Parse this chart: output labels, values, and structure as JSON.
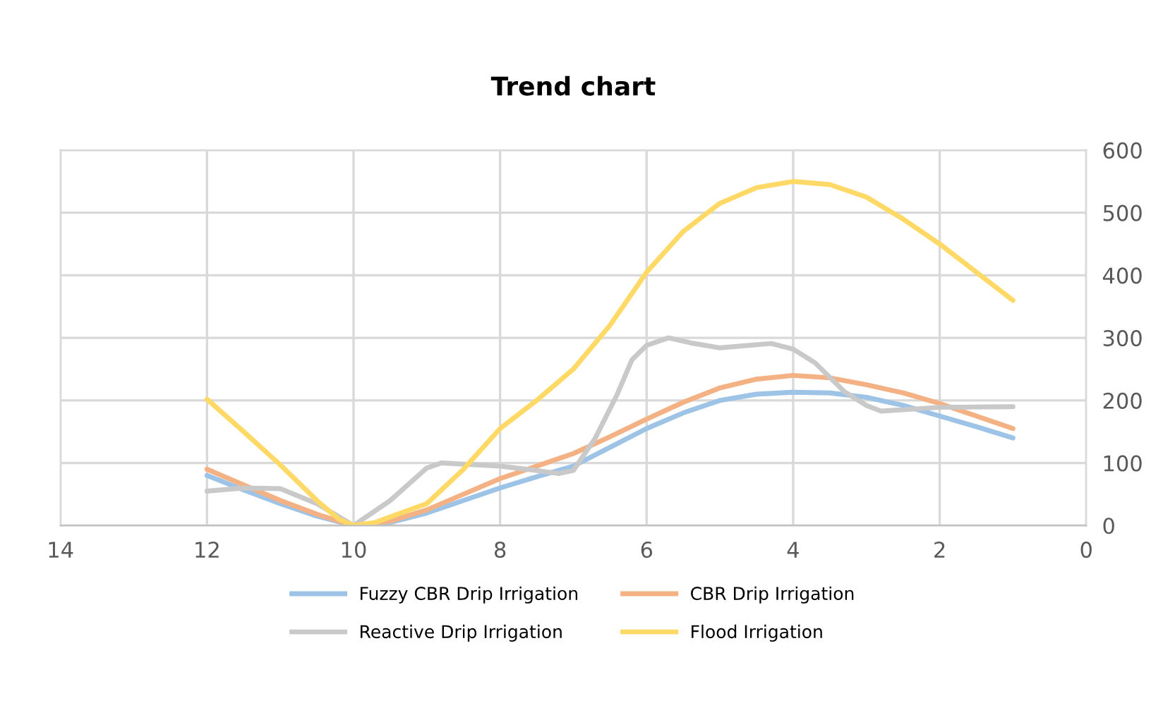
{
  "chart_data": {
    "type": "line",
    "title": "Trend chart",
    "series": [
      {
        "name": "Fuzzy CBR Drip Irrigation",
        "color": "#9dc3e6",
        "x": [
          12,
          11.5,
          11,
          10.5,
          10,
          9.5,
          9,
          8.5,
          8,
          7.5,
          7,
          6.5,
          6,
          5.5,
          5,
          4.5,
          4,
          3.5,
          3,
          2.5,
          2,
          1.5,
          1
        ],
        "values": [
          80,
          57,
          35,
          15,
          0,
          5,
          20,
          40,
          60,
          78,
          95,
          125,
          155,
          180,
          200,
          210,
          213,
          212,
          205,
          192,
          175,
          158,
          140
        ]
      },
      {
        "name": "CBR Drip Irrigation",
        "color": "#f4b183",
        "x": [
          12,
          11.5,
          11,
          10.5,
          10,
          9.5,
          9,
          8.5,
          8,
          7.5,
          7,
          6.5,
          6,
          5.5,
          5,
          4.5,
          4,
          3.5,
          3,
          2.5,
          2,
          1.5,
          1
        ],
        "values": [
          90,
          65,
          40,
          18,
          0,
          7,
          25,
          50,
          75,
          95,
          115,
          142,
          170,
          197,
          220,
          234,
          240,
          236,
          225,
          212,
          195,
          175,
          155
        ]
      },
      {
        "name": "Reactive Drip Irrigation",
        "color": "#c9c9c9",
        "x": [
          12,
          11.5,
          11,
          10.5,
          10,
          9.5,
          9,
          8.8,
          8.5,
          8,
          7.5,
          7.2,
          7,
          6.7,
          6.4,
          6.2,
          6,
          5.7,
          5.4,
          5,
          4.6,
          4.3,
          4,
          3.7,
          3.3,
          3,
          2.8,
          2.5,
          2,
          1
        ],
        "values": [
          55,
          60,
          59,
          35,
          0,
          40,
          92,
          100,
          98,
          95,
          88,
          83,
          88,
          140,
          210,
          265,
          288,
          300,
          292,
          284,
          288,
          291,
          282,
          260,
          214,
          192,
          183,
          185,
          189,
          190
        ]
      },
      {
        "name": "Flood Irrigation",
        "color": "#ffd966",
        "x": [
          12,
          11.5,
          11,
          10.5,
          10.2,
          10,
          9.7,
          9.4,
          9,
          8.5,
          8,
          7.5,
          7,
          6.5,
          6,
          5.5,
          5,
          4.5,
          4,
          3.5,
          3,
          2.5,
          2,
          1.5,
          1
        ],
        "values": [
          202,
          150,
          97,
          40,
          10,
          0,
          5,
          18,
          35,
          90,
          155,
          200,
          250,
          320,
          405,
          470,
          515,
          540,
          550,
          545,
          525,
          490,
          450,
          405,
          360
        ]
      }
    ],
    "xlim": [
      14,
      0
    ],
    "xticks": [
      14,
      12,
      10,
      8,
      6,
      4,
      2,
      0
    ],
    "ylim": [
      0,
      600
    ],
    "yticks": [
      0,
      100,
      200,
      300,
      400,
      500,
      600
    ],
    "grid": true,
    "legend": "bottom",
    "marker": "none",
    "line_style": "solid"
  }
}
